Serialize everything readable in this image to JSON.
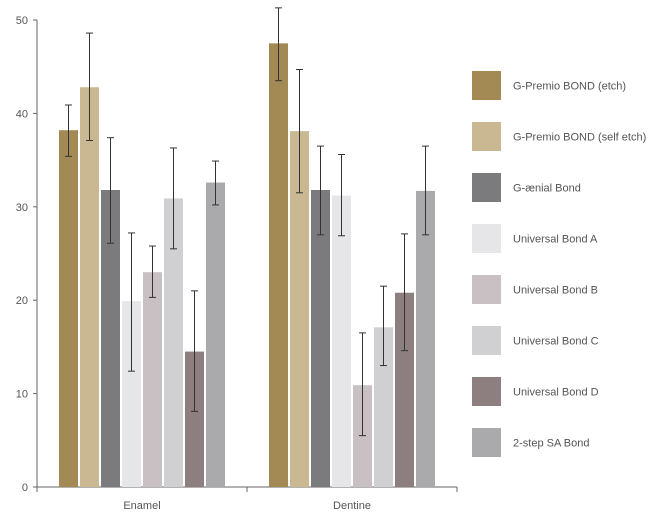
{
  "chart_data": {
    "type": "bar",
    "categories": [
      "Enamel",
      "Dentine"
    ],
    "ylim": [
      0,
      50
    ],
    "yticks": [
      0,
      10,
      20,
      30,
      40,
      50
    ],
    "xlabel": "",
    "ylabel": "",
    "grid": false,
    "legend_position": "right",
    "series": [
      {
        "name": "G-Premio BOND (etch)",
        "color": "#a38a55",
        "values": [
          38.2,
          47.5
        ],
        "err_low": [
          35.4,
          43.5
        ],
        "err_high": [
          40.9,
          51.3
        ]
      },
      {
        "name": "G-Premio BOND (self etch)",
        "color": "#c9b892",
        "values": [
          42.8,
          38.1
        ],
        "err_low": [
          37.1,
          31.5
        ],
        "err_high": [
          48.6,
          44.7
        ]
      },
      {
        "name": "G-ænial Bond",
        "color": "#7b7b7e",
        "values": [
          31.8,
          31.8
        ],
        "err_low": [
          26.1,
          27.0
        ],
        "err_high": [
          37.4,
          36.5
        ]
      },
      {
        "name": "Universal Bond A",
        "color": "#e6e6e8",
        "values": [
          19.9,
          31.2
        ],
        "err_low": [
          12.4,
          26.9
        ],
        "err_high": [
          27.2,
          35.6
        ]
      },
      {
        "name": "Universal Bond B",
        "color": "#c8c0c2",
        "values": [
          23.0,
          10.9
        ],
        "err_low": [
          20.3,
          5.5
        ],
        "err_high": [
          25.8,
          16.5
        ]
      },
      {
        "name": "Universal Bond C",
        "color": "#d0d0d2",
        "values": [
          30.9,
          17.1
        ],
        "err_low": [
          25.5,
          13.0
        ],
        "err_high": [
          36.3,
          21.5
        ]
      },
      {
        "name": "Universal Bond D",
        "color": "#8d7f80",
        "values": [
          14.5,
          20.8
        ],
        "err_low": [
          8.1,
          14.6
        ],
        "err_high": [
          21.0,
          27.1
        ]
      },
      {
        "name": "2-step SA Bond",
        "color": "#aaaaad",
        "values": [
          32.6,
          31.7
        ],
        "err_low": [
          30.2,
          27.0
        ],
        "err_high": [
          34.9,
          36.5
        ]
      }
    ]
  }
}
